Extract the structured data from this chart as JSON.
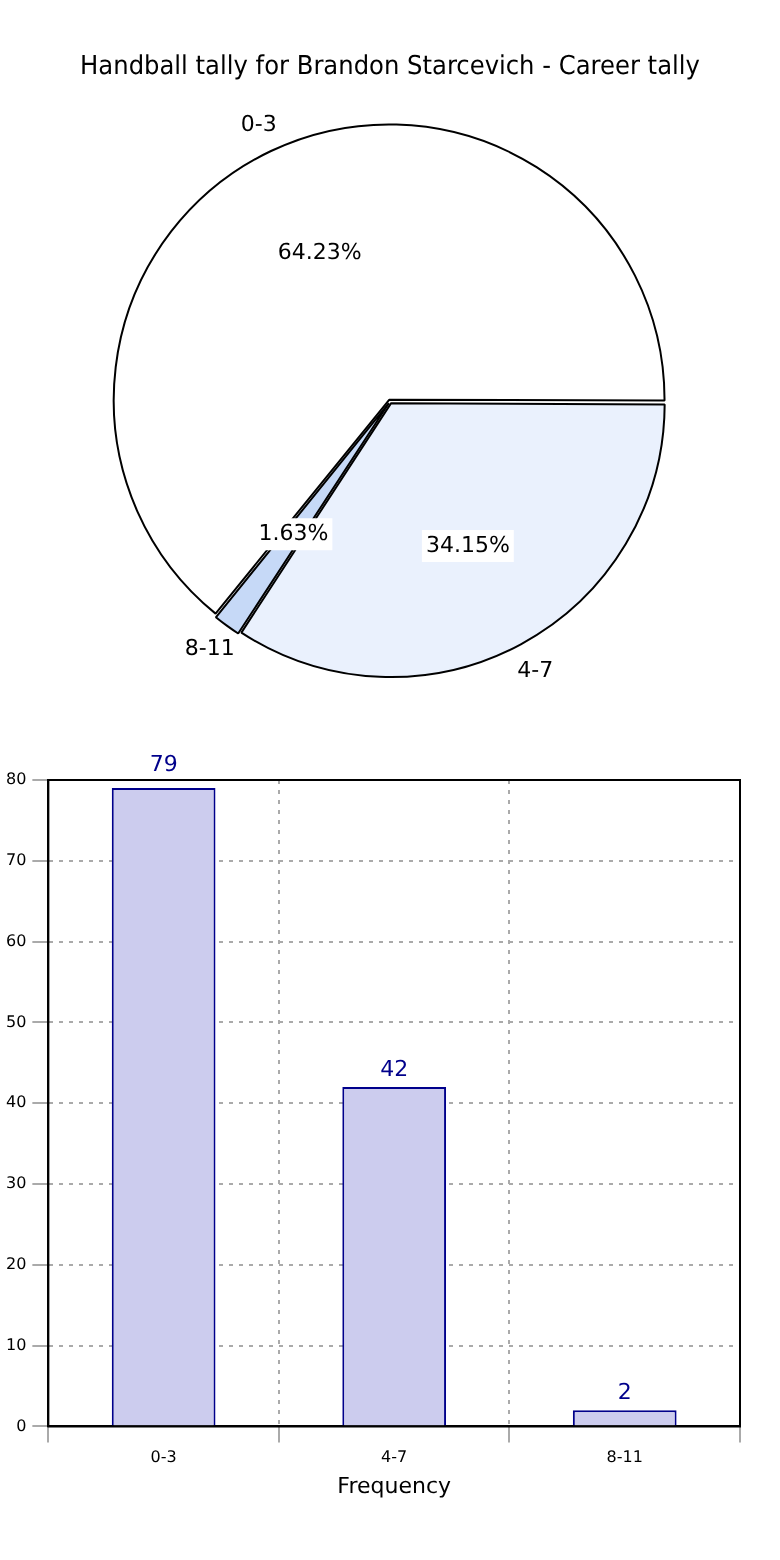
{
  "chart_data": [
    {
      "type": "pie",
      "title": "Handball tally for Brandon Starcevich - Career tally",
      "categories": [
        "0-3",
        "4-7",
        "8-11"
      ],
      "values": [
        64.23,
        34.15,
        1.63
      ],
      "value_labels": [
        "64.23%",
        "34.15%",
        "1.63%"
      ],
      "colors": [
        "#ffffff",
        "#eaf1fd",
        "#c6d9f7"
      ]
    },
    {
      "type": "bar",
      "xlabel": "Frequency",
      "categories": [
        "0-3",
        "4-7",
        "8-11"
      ],
      "values": [
        79,
        42,
        2
      ],
      "color": "#ccccee",
      "ylim": [
        0,
        80
      ],
      "yticks": [
        0,
        10,
        20,
        30,
        40,
        50,
        60,
        70,
        80
      ],
      "grid": true,
      "data_labels": true
    }
  ]
}
